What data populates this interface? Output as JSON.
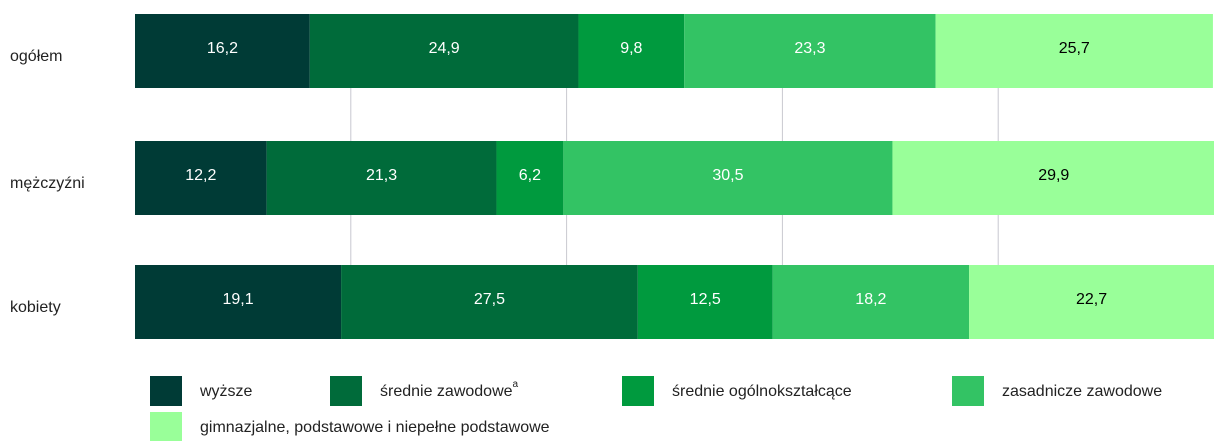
{
  "chart_data": {
    "type": "stacked-bar-horizontal",
    "categories": [
      "ogółem",
      "mężczyźni",
      "kobiety"
    ],
    "series": [
      {
        "name": "wyższe",
        "color": "#003b36",
        "label_color": "#ffffff",
        "values": [
          16.2,
          12.2,
          19.1
        ],
        "value_labels": [
          "16,2",
          "12,2",
          "19,1"
        ]
      },
      {
        "name": "średnie zawodowe",
        "superscript": "a",
        "color": "#006b3a",
        "label_color": "#ffffff",
        "values": [
          24.9,
          21.3,
          27.5
        ],
        "value_labels": [
          "24,9",
          "21,3",
          "27,5"
        ]
      },
      {
        "name": "średnie ogólnokształcące",
        "color": "#009a3e",
        "label_color": "#ffffff",
        "values": [
          9.8,
          6.2,
          12.5
        ],
        "value_labels": [
          "9,8",
          "6,2",
          "12,5"
        ]
      },
      {
        "name": "zasadnicze zawodowe",
        "color": "#33c364",
        "label_color": "#ffffff",
        "values": [
          23.3,
          30.5,
          18.2
        ],
        "value_labels": [
          "23,3",
          "30,5",
          "18,2"
        ]
      },
      {
        "name": "gimnazjalne, podstawowe i niepełne podstawowe",
        "color": "#99ff99",
        "label_color": "#000000",
        "values": [
          25.7,
          29.9,
          22.7
        ],
        "value_labels": [
          "25,7",
          "29,9",
          "22,7"
        ]
      }
    ],
    "xlim": [
      0,
      100
    ],
    "xticks": [
      20,
      40,
      60,
      80
    ],
    "grid": true,
    "legend": "bottom"
  }
}
